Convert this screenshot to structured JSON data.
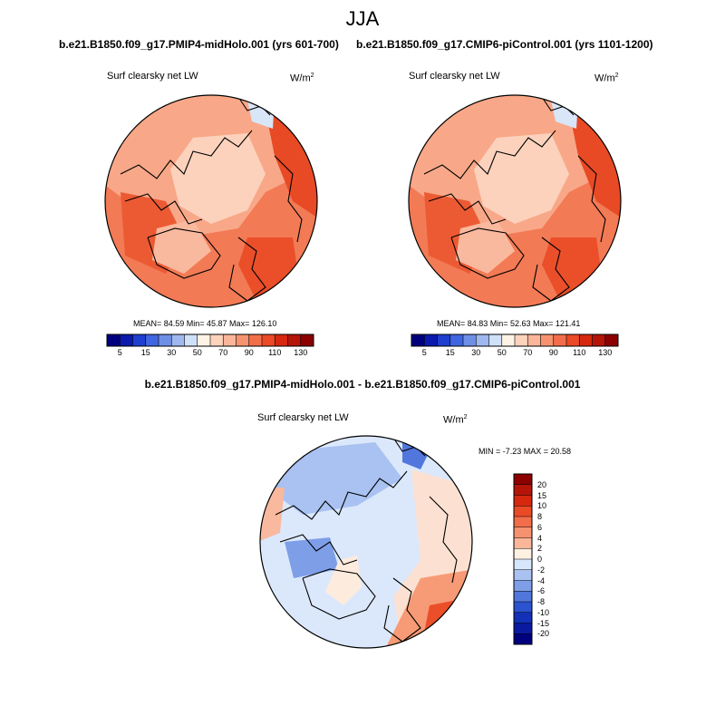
{
  "figure": {
    "title": "JJA"
  },
  "panels": [
    {
      "title": "b.e21.B1850.f09_g17.PMIP4-midHolo.001 (yrs 601-700)",
      "variable": "Surf clearsky net LW",
      "units_base": "W/m",
      "units_exp": "2",
      "stats": "MEAN=  84.59  Min=  45.87  Max= 126.10",
      "field": "absolute"
    },
    {
      "title": "b.e21.B1850.f09_g17.CMIP6-piControl.001 (yrs 1101-1200)",
      "variable": "Surf clearsky net LW",
      "units_base": "W/m",
      "units_exp": "2",
      "stats": "MEAN=  84.83  Min=  52.63  Max= 121.41",
      "field": "absolute"
    },
    {
      "title": "b.e21.B1850.f09_g17.PMIP4-midHolo.001 - b.e21.B1850.f09_g17.CMIP6-piControl.001",
      "variable": "Surf clearsky net LW",
      "units_base": "W/m",
      "units_exp": "2",
      "stats": "MIN =  -7.23 MAX =  20.58",
      "field": "difference"
    }
  ],
  "colorbar_abs": {
    "labels": [
      "5",
      "15",
      "30",
      "50",
      "70",
      "90",
      "110",
      "130"
    ],
    "colors": [
      "#00007f",
      "#0a1aad",
      "#1f3fd0",
      "#3f65e0",
      "#6f8fe6",
      "#a0b8f0",
      "#cfe0f8",
      "#fff3e6",
      "#fdd3bc",
      "#fbb699",
      "#f79270",
      "#f26e4a",
      "#ea4a26",
      "#d6280f",
      "#b51509",
      "#8c0000"
    ]
  },
  "colorbar_diff": {
    "labels": [
      "20",
      "15",
      "10",
      "8",
      "6",
      "4",
      "2",
      "0",
      "-2",
      "-4",
      "-6",
      "-8",
      "-10",
      "-15",
      "-20"
    ],
    "colors": [
      "#8c0000",
      "#b51509",
      "#d6280f",
      "#ea4a26",
      "#f26e4a",
      "#f79270",
      "#fbb699",
      "#fff1e2",
      "#d6e6fb",
      "#a9c2f2",
      "#7e9fe8",
      "#5177dc",
      "#2b52cf",
      "#1230b8",
      "#0a1aa0",
      "#00007f"
    ]
  }
}
